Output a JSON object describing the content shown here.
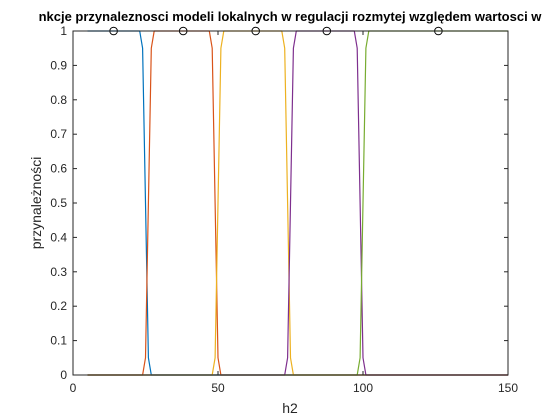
{
  "chart_data": {
    "type": "line",
    "title": "nkcje przynaleznosci modeli lokalnych w regulacji rozmytej względem wartosci w",
    "xlabel": "h2",
    "ylabel": "przynależności",
    "xlim": [
      0,
      150
    ],
    "ylim": [
      0,
      1
    ],
    "xticks": [
      "0",
      "50",
      "100",
      "150"
    ],
    "yticks": [
      "0",
      "0.1",
      "0.2",
      "0.3",
      "0.4",
      "0.5",
      "0.6",
      "0.7",
      "0.8",
      "0.9",
      "1"
    ],
    "grid": false,
    "legend": "none",
    "series": [
      {
        "color": "#0072BD",
        "x": [
          5,
          23,
          24,
          25,
          26,
          27,
          28,
          150
        ],
        "y": [
          1,
          1,
          0.95,
          0.5,
          0.05,
          0,
          0,
          0
        ]
      },
      {
        "color": "#D95319",
        "x": [
          5,
          24,
          25,
          26,
          27,
          28,
          47,
          48,
          49,
          50,
          51,
          52,
          150
        ],
        "y": [
          0,
          0,
          0.05,
          0.5,
          0.95,
          1,
          1,
          0.95,
          0.5,
          0.05,
          0,
          0,
          0
        ]
      },
      {
        "color": "#EDB120",
        "x": [
          5,
          48,
          49,
          50,
          51,
          52,
          72,
          73,
          74,
          75,
          76,
          77,
          150
        ],
        "y": [
          0,
          0,
          0.05,
          0.5,
          0.95,
          1,
          1,
          0.95,
          0.5,
          0.05,
          0,
          0,
          0
        ]
      },
      {
        "color": "#7E2F8E",
        "x": [
          5,
          73,
          74,
          75,
          76,
          77,
          97,
          98,
          99,
          100,
          101,
          102,
          150
        ],
        "y": [
          0,
          0,
          0.05,
          0.5,
          0.95,
          1,
          1,
          0.95,
          0.5,
          0.05,
          0,
          0,
          0
        ]
      },
      {
        "color": "#77AC30",
        "x": [
          5,
          98,
          99,
          100,
          101,
          102,
          150
        ],
        "y": [
          0,
          0,
          0.05,
          0.5,
          0.95,
          1,
          1
        ]
      }
    ],
    "markers": {
      "x": [
        14,
        38,
        63,
        87.5,
        126
      ],
      "y": [
        1,
        1,
        1,
        1,
        1
      ]
    }
  }
}
